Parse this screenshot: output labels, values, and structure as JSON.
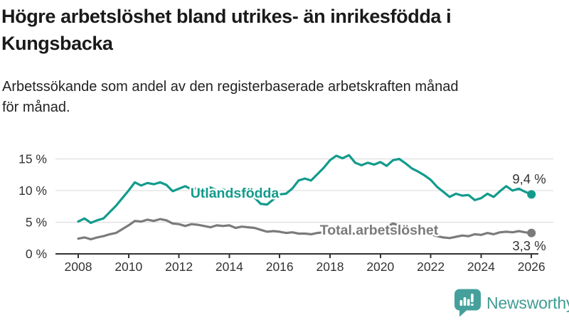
{
  "header": {
    "title_lines": [
      "Högre arbetslöshet bland utrikes- än inrikesfödda i",
      "Kungsbacka"
    ],
    "subtitle_lines": [
      "Arbetssökande som andel av den registerbaserade arbetskraften månad",
      "för månad."
    ]
  },
  "chart_data": {
    "type": "line",
    "title": "Högre arbetslöshet bland utrikes- än inrikesfödda i Kungsbacka",
    "subtitle": "Arbetssökande som andel av den registerbaserade arbetskraften månad för månad.",
    "xlabel": "",
    "ylabel": "",
    "ylim": [
      0,
      16.5
    ],
    "grid": "horizontal",
    "grid_color": "#d9d9d9",
    "axis_color": "#333333",
    "y_ticks": [
      {
        "value": 0,
        "label": "0 %"
      },
      {
        "value": 5,
        "label": "5 %"
      },
      {
        "value": 10,
        "label": "10 %"
      },
      {
        "value": 15,
        "label": "15 %"
      }
    ],
    "x_ticks": [
      2008,
      2010,
      2012,
      2014,
      2016,
      2018,
      2020,
      2022,
      2024,
      2026
    ],
    "x": [
      2008,
      2008.25,
      2008.5,
      2008.75,
      2009,
      2009.25,
      2009.5,
      2009.75,
      2010,
      2010.25,
      2010.5,
      2010.75,
      2011,
      2011.25,
      2011.5,
      2011.75,
      2012,
      2012.25,
      2012.5,
      2012.75,
      2013,
      2013.25,
      2013.5,
      2013.75,
      2014,
      2014.25,
      2014.5,
      2014.75,
      2015,
      2015.25,
      2015.5,
      2015.75,
      2016,
      2016.25,
      2016.5,
      2016.75,
      2017,
      2017.25,
      2017.5,
      2017.75,
      2018,
      2018.25,
      2018.5,
      2018.75,
      2019,
      2019.25,
      2019.5,
      2019.75,
      2020,
      2020.25,
      2020.5,
      2020.75,
      2021,
      2021.25,
      2021.5,
      2021.75,
      2022,
      2022.25,
      2022.5,
      2022.75,
      2023,
      2023.25,
      2023.5,
      2023.75,
      2024,
      2024.25,
      2024.5,
      2024.75,
      2025,
      2025.25,
      2025.5,
      2025.75,
      2026
    ],
    "series": [
      {
        "name": "Utlandsfödda",
        "color": "#129B8C",
        "end_label": "9,4 %",
        "end_value": 9.4,
        "values": [
          5.1,
          5.6,
          4.9,
          5.3,
          5.6,
          6.6,
          7.6,
          8.8,
          10.0,
          11.3,
          10.8,
          11.2,
          11.0,
          11.3,
          10.9,
          9.9,
          10.3,
          10.7,
          10.2,
          10.4,
          10.1,
          10.5,
          10.0,
          10.2,
          9.8,
          10.0,
          9.6,
          9.3,
          8.9,
          7.9,
          7.8,
          8.6,
          9.4,
          9.5,
          10.3,
          11.6,
          11.9,
          11.6,
          12.6,
          13.6,
          14.8,
          15.5,
          15.1,
          15.6,
          14.4,
          14.0,
          14.4,
          14.1,
          14.5,
          13.9,
          14.8,
          15.0,
          14.3,
          13.5,
          13.0,
          12.4,
          11.7,
          10.6,
          9.8,
          9.0,
          9.5,
          9.2,
          9.3,
          8.5,
          8.8,
          9.5,
          9.0,
          9.9,
          10.7,
          10.0,
          10.3,
          9.8,
          9.4
        ]
      },
      {
        "name": "Total arbetslöshet",
        "color": "#7B7B7B",
        "end_label": "3,3 %",
        "end_value": 3.3,
        "values": [
          2.4,
          2.6,
          2.3,
          2.6,
          2.8,
          3.1,
          3.3,
          3.9,
          4.5,
          5.2,
          5.1,
          5.4,
          5.2,
          5.5,
          5.3,
          4.8,
          4.7,
          4.4,
          4.7,
          4.6,
          4.4,
          4.2,
          4.5,
          4.4,
          4.5,
          4.1,
          4.3,
          4.2,
          4.1,
          3.8,
          3.5,
          3.6,
          3.5,
          3.3,
          3.4,
          3.2,
          3.2,
          3.1,
          3.3,
          3.4,
          3.3,
          3.2,
          3.3,
          3.2,
          3.2,
          3.3,
          3.5,
          3.4,
          3.6,
          4.3,
          4.8,
          4.5,
          4.3,
          4.0,
          3.7,
          3.4,
          3.1,
          2.8,
          2.6,
          2.5,
          2.7,
          2.9,
          2.8,
          3.1,
          3.0,
          3.3,
          3.1,
          3.4,
          3.5,
          3.4,
          3.6,
          3.4,
          3.3
        ]
      }
    ],
    "legend_position": "inline-labels"
  },
  "branding": {
    "logo_text": "Newsworthy",
    "logo_color": "#3F9C95",
    "icon_color": "#45A09B",
    "icon_name": "bar-chart-speech-bubble-icon"
  }
}
